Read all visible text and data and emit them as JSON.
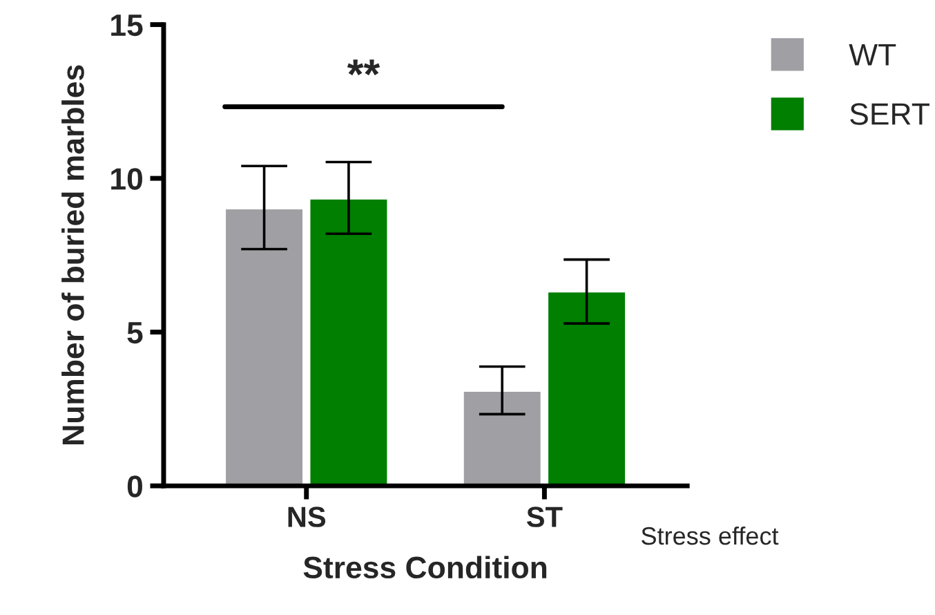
{
  "chart_data": {
    "type": "bar",
    "xlabel": "Stress Condition",
    "ylabel": "Number of buried marbles",
    "categories": [
      "NS",
      "ST"
    ],
    "series": [
      {
        "name": "WT",
        "color": "#a09fa4",
        "values": [
          9.02,
          3.09
        ],
        "errors": [
          [
            7.7,
            10.4
          ],
          [
            2.33,
            3.88
          ]
        ]
      },
      {
        "name": "SERT",
        "color": "#007f00",
        "values": [
          9.34,
          6.32
        ],
        "errors": [
          [
            8.2,
            10.53
          ],
          [
            5.28,
            7.36
          ]
        ]
      }
    ],
    "ylim": [
      0,
      15
    ],
    "yticks": [
      0,
      5,
      10,
      15
    ],
    "grid": false,
    "legend": "top right",
    "annotations": [
      "**",
      "Stress effect"
    ]
  }
}
